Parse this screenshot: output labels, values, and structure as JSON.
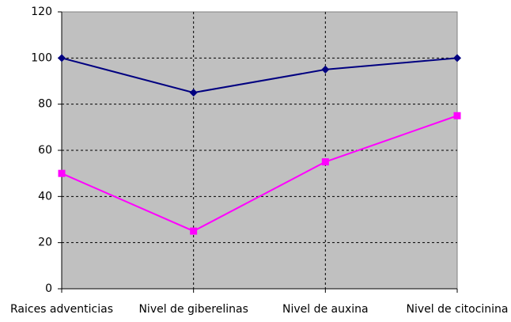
{
  "chart_data": {
    "type": "line",
    "categories": [
      "Raices adventicias",
      "Nivel de giberelinas",
      "Nivel de auxina",
      "Nivel de citocinina"
    ],
    "series": [
      {
        "color": "#000080",
        "marker": "diamond",
        "values": [
          100,
          85,
          95,
          100
        ]
      },
      {
        "color": "#ff00ff",
        "marker": "square",
        "values": [
          50,
          25,
          55,
          75
        ]
      }
    ],
    "ylim": [
      0,
      120
    ],
    "yticks": [
      0,
      20,
      40,
      60,
      80,
      100,
      120
    ],
    "grid": true,
    "plot_background": "#c0c0c0"
  }
}
